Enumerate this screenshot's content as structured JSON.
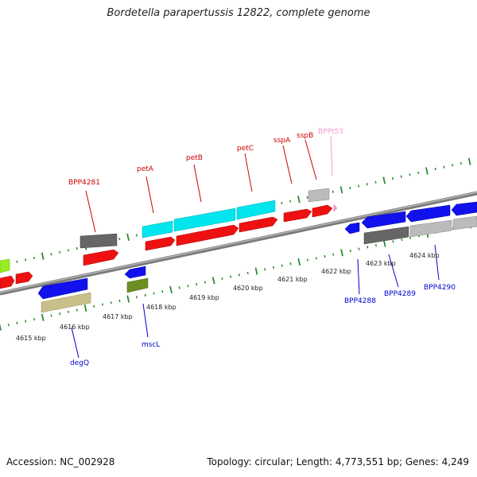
{
  "title": "Bordetella parapertussis 12822, complete genome",
  "footer": {
    "accession": "Accession: NC_002928",
    "summary": "Topology: circular; Length: 4,773,551 bp; Genes: 4,249"
  },
  "colors": {
    "backbone": "#8a8a8a",
    "tick": "#2e8b2e",
    "label_top": "#cc0000",
    "label_bottom": "#0000cc",
    "label_trna": "#ee99cc",
    "red": "#ee1111",
    "cyan": "#00e5ee",
    "blue": "#1111ee",
    "darkgray": "#666666",
    "lightgray": "#bbbbbb",
    "olive": "#6b8e23",
    "khaki": "#c8c08a",
    "lime": "#99ee22",
    "pink": "#ff99cc"
  },
  "kbp_labels": [
    "4615 kbp",
    "4616 kbp",
    "4617 kbp",
    "4618 kbp",
    "4619 kbp",
    "4620 kbp",
    "4621 kbp",
    "4622 kbp",
    "4623 kbp",
    "4624 kbp"
  ],
  "top_labels": [
    {
      "id": "bpp4281",
      "text": "BPP4281",
      "color": "label_top"
    },
    {
      "id": "peta",
      "text": "petA",
      "color": "label_top"
    },
    {
      "id": "petb",
      "text": "petB",
      "color": "label_top"
    },
    {
      "id": "petc",
      "text": "petC",
      "color": "label_top"
    },
    {
      "id": "sspa",
      "text": "sspA",
      "color": "label_top"
    },
    {
      "id": "sspb",
      "text": "sspB",
      "color": "label_top"
    },
    {
      "id": "bppt53",
      "text": "BPPt53",
      "color": "label_trna"
    }
  ],
  "bottom_labels": [
    {
      "id": "degq",
      "text": "degQ"
    },
    {
      "id": "mscl",
      "text": "mscL"
    },
    {
      "id": "bpp4288",
      "text": "BPP4288"
    },
    {
      "id": "bpp4289",
      "text": "BPP4289"
    },
    {
      "id": "bpp4290",
      "text": "BPP4290"
    }
  ]
}
